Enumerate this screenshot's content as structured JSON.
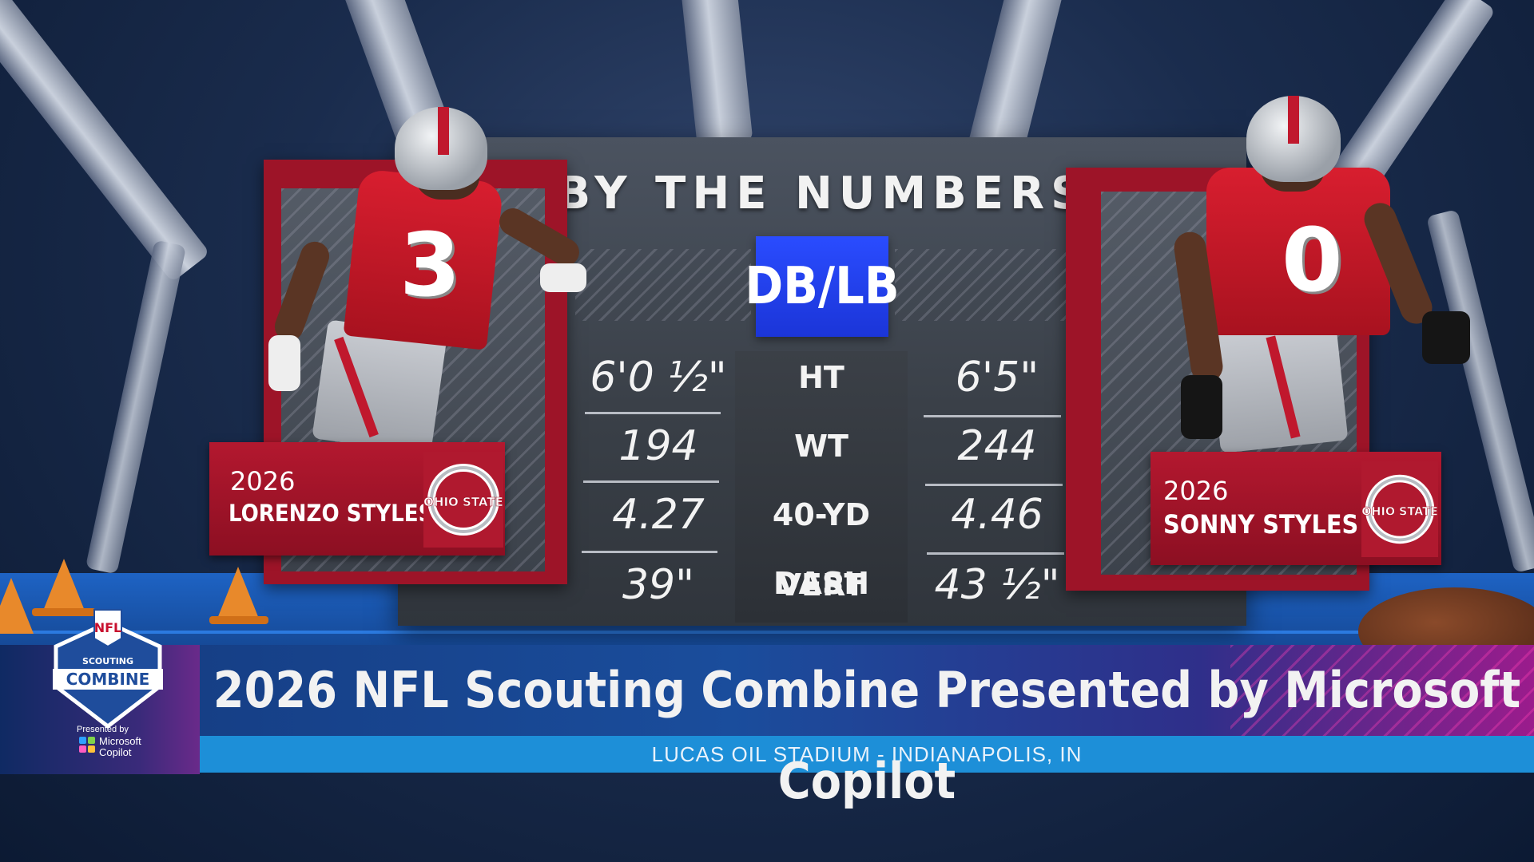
{
  "board": {
    "title": "BY THE NUMBERS",
    "position_badge": "DB/LB"
  },
  "stats": [
    {
      "label": "HT",
      "left": "6'0 ½\"",
      "right": "6'5\""
    },
    {
      "label": "WT",
      "left": "194",
      "right": "244"
    },
    {
      "label": "40-YD DASH",
      "left": "4.27",
      "right": "4.46"
    },
    {
      "label": "VERT",
      "left": "39\"",
      "right": "43 ½\""
    }
  ],
  "players": {
    "left": {
      "year": "2026",
      "name": "LORENZO STYLES JR.",
      "jersey_number": "3",
      "school_logo": "ohio-state-logo",
      "logo_text": "OHIO STATE"
    },
    "right": {
      "year": "2026",
      "name": "SONNY STYLES",
      "jersey_number": "0",
      "school_logo": "ohio-state-logo",
      "logo_text": "OHIO STATE"
    }
  },
  "lower_third": {
    "title": "2026 NFL Scouting Combine Presented by Microsoft Copilot",
    "subtitle": "LUCAS OIL STADIUM - INDIANAPOLIS, IN"
  },
  "combine_logo": {
    "nfl": "NFL",
    "scouting": "SCOUTING",
    "combine": "COMBINE",
    "presented_by": "Presented by",
    "sponsor_line1": "Microsoft",
    "sponsor_line2": "Copilot"
  },
  "colors": {
    "ohio_red": "#b3182f",
    "badge_blue": "#2a4cff",
    "floor_blue": "#1e63c4",
    "subtitle_bar": "#1d8fd8"
  }
}
